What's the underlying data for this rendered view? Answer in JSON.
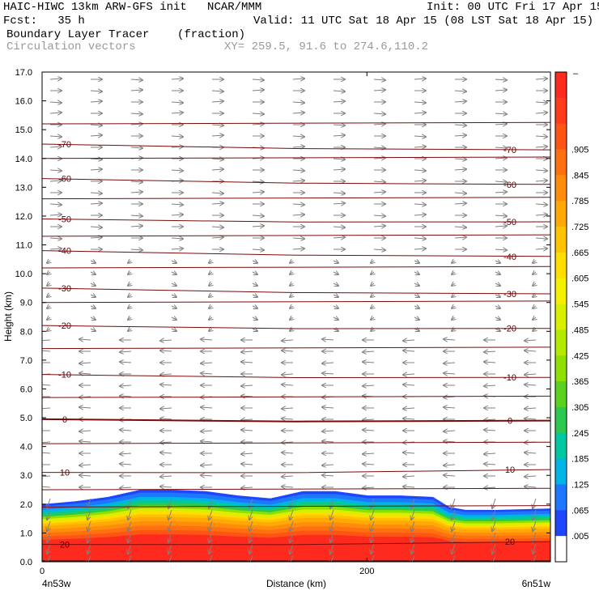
{
  "header": {
    "title_left": "HAIC-HIWC 13km ARW-GFS init   NCAR/MMM",
    "init": "Init: 00 UTC Fri 17 Apr 15",
    "fcst": "Fcst:   35 h",
    "valid": "Valid: 11 UTC Sat 18 Apr 15 (08 LST Sat 18 Apr 15)",
    "field": "Boundary Layer Tracer",
    "field_units": "(fraction)",
    "vectors": "Circulation vectors",
    "xy": "XY= 259.5, 91.6 to 274.6,110.2"
  },
  "colors": {
    "contour": "#7a0a0a",
    "vector": "#808080",
    "vectors_label": "#999999"
  },
  "chart_data": {
    "type": "heatmap",
    "title": "Boundary Layer Tracer",
    "units": "(fraction)",
    "xlabel": "Distance (km)",
    "ylabel": "Height (km)",
    "xlim": [
      0,
      313
    ],
    "ylim": [
      0,
      17
    ],
    "x_ticks": [
      {
        "value": 0,
        "label": "0"
      },
      {
        "value": 200,
        "label": "200"
      }
    ],
    "x_end_labels": {
      "left": "4n53w",
      "right": "6n51w"
    },
    "y_ticks": [
      0,
      1,
      2,
      3,
      4,
      5,
      6,
      7,
      8,
      9,
      10,
      11,
      12,
      13,
      14,
      15,
      16,
      17
    ],
    "y_tick_labels": [
      "0.0",
      "1.0",
      "2.0",
      "3.0",
      "4.0",
      "5.0",
      "6.0",
      "7.0",
      "8.0",
      "9.0",
      "10.0",
      "11.0",
      "12.0",
      "13.0",
      "14.0",
      "15.0",
      "16.0",
      "17.0"
    ],
    "colorbar": {
      "levels": [
        "",
        ".905",
        ".845",
        ".785",
        ".725",
        ".665",
        ".605",
        ".545",
        ".485",
        ".425",
        ".365",
        ".305",
        ".245",
        ".185",
        ".125",
        ".065",
        ".005"
      ],
      "top_label": "–",
      "colors": [
        "#ff2a1e",
        "#ff3b1a",
        "#ff5514",
        "#ff7010",
        "#ff8c0a",
        "#ffa806",
        "#ffc300",
        "#ffdd00",
        "#f5f000",
        "#d8f000",
        "#b4ea00",
        "#8fe000",
        "#5ad21e",
        "#2cc850",
        "#00c8a0",
        "#00b4e6",
        "#1e78ff",
        "#1e46ff",
        "#ffffff"
      ]
    },
    "tracer_top_profile": {
      "x": [
        0,
        10,
        20,
        40,
        60,
        80,
        100,
        120,
        140,
        160,
        180,
        200,
        220,
        240,
        250,
        260,
        280,
        313
      ],
      "top_km": [
        2.0,
        2.05,
        2.1,
        2.25,
        2.5,
        2.5,
        2.45,
        2.3,
        2.2,
        2.45,
        2.45,
        2.3,
        2.3,
        2.25,
        1.9,
        1.8,
        1.8,
        1.85
      ]
    },
    "temperature_contours": [
      {
        "value": -70,
        "label": "-70",
        "y_left": 14.5,
        "y_right": 14.3
      },
      {
        "value": -60,
        "label": "-60",
        "y_left": 13.3,
        "y_right": 13.1
      },
      {
        "value": -50,
        "label": "-50",
        "y_left": 11.9,
        "y_right": 11.8
      },
      {
        "value": -40,
        "label": "-40",
        "y_left": 10.8,
        "y_right": 10.6
      },
      {
        "value": -30,
        "label": "-30",
        "y_left": 9.5,
        "y_right": 9.3
      },
      {
        "value": -20,
        "label": "-20",
        "y_left": 8.2,
        "y_right": 8.1
      },
      {
        "value": -10,
        "label": "-10",
        "y_left": 6.5,
        "y_right": 6.4
      },
      {
        "value": 0,
        "label": "0",
        "y_left": 4.95,
        "y_right": 4.9
      },
      {
        "value": 10,
        "label": "10",
        "y_left": 3.1,
        "y_right": 3.2
      },
      {
        "value": 20,
        "label": "20",
        "y_left": 0.6,
        "y_right": 0.7
      }
    ],
    "extra_contours_y": [
      15.2,
      14.0,
      12.6,
      11.3,
      10.2,
      9.0,
      7.4,
      5.7,
      4.1,
      2.5,
      1.9
    ]
  }
}
